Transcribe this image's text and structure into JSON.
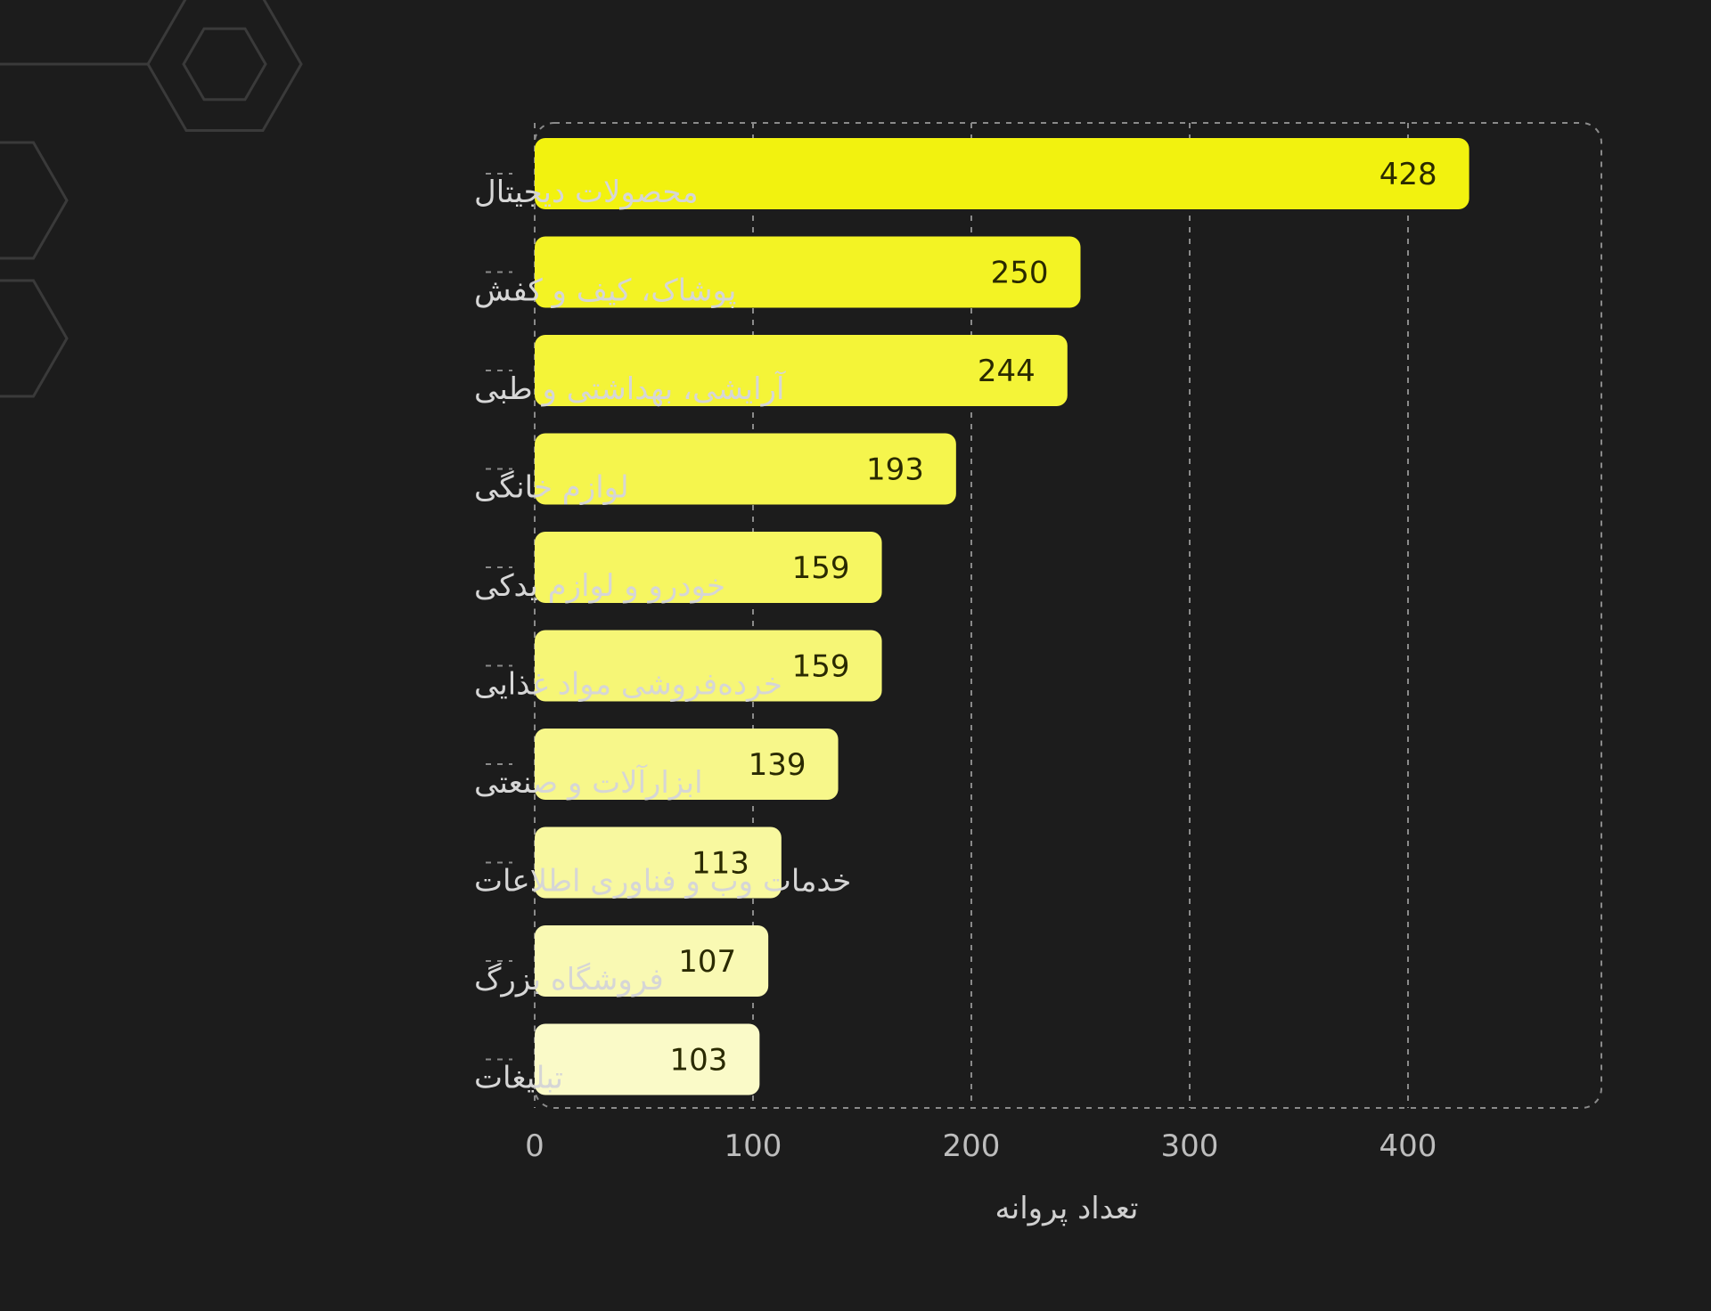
{
  "colors": {
    "background": "#1c1c1c",
    "grid": "#8a8a8a",
    "decoration": "#3a3a3a",
    "bar_strong": "#f2f20f",
    "bar_light": "#fafac8"
  },
  "chart_data": {
    "type": "bar",
    "orientation": "horizontal",
    "title": "",
    "xlabel": "تعداد پروانه",
    "ylabel": "",
    "xlim": [
      0,
      490
    ],
    "x_ticks": [
      0,
      100,
      200,
      300,
      400
    ],
    "grid": true,
    "categories": [
      "محصولات دیجیتال",
      "پوشاک، کیف و کفش",
      "آرایشی، بهداشتی و طبی",
      "لوازم خانگی",
      "خودرو و لوازم یدکی",
      "خرده‌فروشی مواد غذایی",
      "ابزارآلات و صنعتی",
      "خدمات وب و فناوری اطلاعات",
      "فروشگاه بزرگ",
      "تبلیغات"
    ],
    "values": [
      428,
      250,
      244,
      193,
      159,
      159,
      139,
      113,
      107,
      103
    ]
  }
}
